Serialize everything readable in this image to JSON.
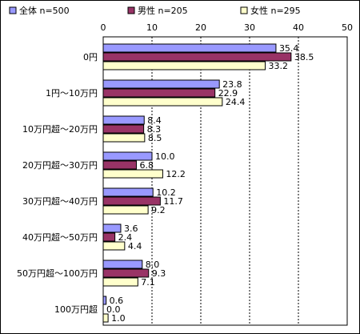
{
  "chart_data": {
    "type": "bar",
    "orientation": "horizontal",
    "categories": [
      "0円",
      "1円～10万円",
      "10万円超～20万円",
      "20万円超～30万円",
      "30万円超～40万円",
      "40万円超～50万円",
      "50万円超～100万円",
      "100万円超"
    ],
    "series": [
      {
        "name": "全体 n=500",
        "color": "#9999ff",
        "values": [
          35.4,
          23.8,
          8.4,
          10.0,
          10.2,
          3.6,
          8.0,
          0.6
        ],
        "labels": [
          "35.4",
          "23.8",
          "8.4",
          "10.0",
          "10.2",
          "3.6",
          "8.0",
          "0.6"
        ]
      },
      {
        "name": "男性 n=205",
        "color": "#993366",
        "values": [
          38.5,
          22.9,
          8.3,
          6.8,
          11.7,
          2.4,
          9.3,
          0.0
        ],
        "labels": [
          "38.5",
          "22.9",
          "8.3",
          "6.8",
          "11.7",
          "2.4",
          "9.3",
          "0.0"
        ]
      },
      {
        "name": "女性 n=295",
        "color": "#ffffcc",
        "values": [
          33.2,
          24.4,
          8.5,
          12.2,
          9.2,
          4.4,
          7.1,
          1.0
        ],
        "labels": [
          "33.2",
          "24.4",
          "8.5",
          "12.2",
          "9.2",
          "4.4",
          "7.1",
          "1.0"
        ]
      }
    ],
    "xlim": [
      0,
      50
    ],
    "ticks": [
      "0",
      "10",
      "20",
      "30",
      "40",
      "50"
    ],
    "grid": true,
    "legend": "top"
  }
}
